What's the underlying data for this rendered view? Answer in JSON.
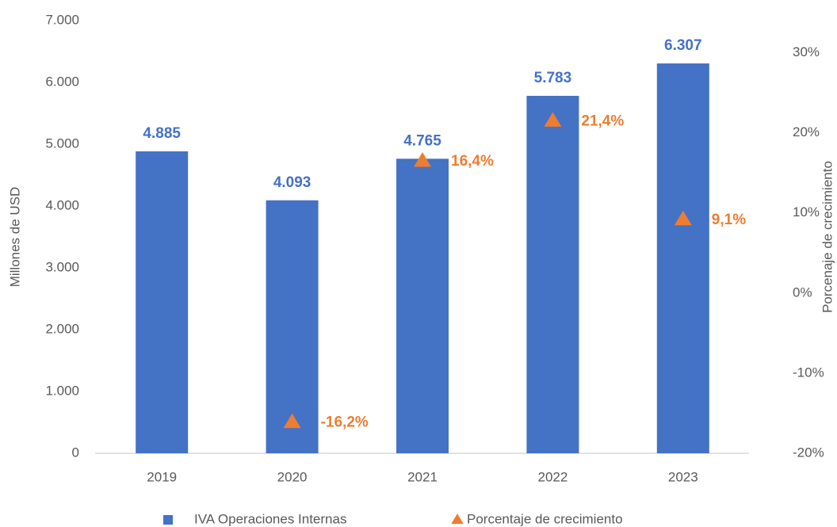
{
  "chart_data": {
    "type": "bar",
    "categories": [
      "2019",
      "2020",
      "2021",
      "2022",
      "2023"
    ],
    "series": [
      {
        "name": "IVA Operaciones Internas",
        "type": "bar",
        "color": "#4472c4",
        "values": [
          4885,
          4093,
          4765,
          5783,
          6307
        ],
        "value_labels": [
          "4.885",
          "4.093",
          "4.765",
          "5.783",
          "6.307"
        ]
      },
      {
        "name": "Porcentaje de crecimiento",
        "type": "scatter",
        "axis": "y2",
        "color": "#ed7d31",
        "values": [
          null,
          -16.2,
          16.4,
          21.4,
          9.1
        ],
        "value_labels": [
          null,
          "-16,2%",
          "16,4%",
          "21,4%",
          "9,1%"
        ]
      }
    ],
    "ylabel": "Millones de USD",
    "y2label": "Porcenaje de crecimiento",
    "ylim": [
      0,
      7000
    ],
    "yticks": [
      0,
      {
        "value": 1000,
        "label": "1.000"
      },
      {
        "value": 2000,
        "label": "2.000"
      },
      {
        "value": 3000,
        "label": "3.000"
      },
      {
        "value": 4000,
        "label": "4.000"
      },
      {
        "value": 5000,
        "label": "5.000"
      },
      {
        "value": 6000,
        "label": "6.000"
      },
      {
        "value": 7000,
        "label": "7.000"
      }
    ],
    "y2lim": [
      -20,
      34
    ],
    "y2ticks": [
      {
        "value": -20,
        "label": "-20%"
      },
      {
        "value": -10,
        "label": "-10%"
      },
      {
        "value": 0,
        "label": "0%"
      },
      {
        "value": 10,
        "label": "10%"
      },
      {
        "value": 20,
        "label": "20%"
      },
      {
        "value": 30,
        "label": "30%"
      }
    ],
    "grid": false,
    "legend": "bottom"
  }
}
